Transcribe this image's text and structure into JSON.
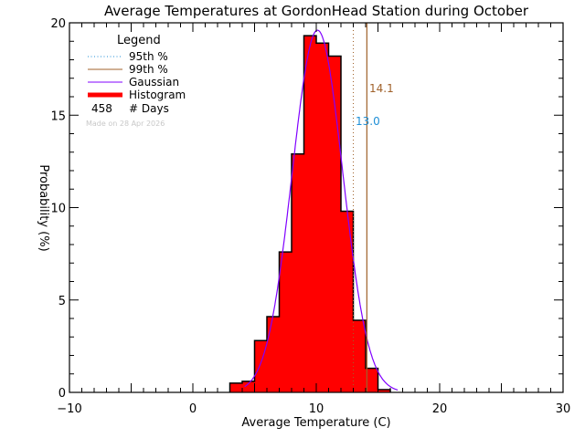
{
  "chart_data": {
    "type": "bar",
    "title": "Average Temperatures at GordonHead Station during October",
    "xlabel": "Average Temperature (C)",
    "ylabel": "Probability (%)",
    "xlim": [
      -10,
      30
    ],
    "ylim": [
      0,
      20
    ],
    "x_ticks": [
      -10,
      0,
      10,
      20,
      30
    ],
    "y_ticks": [
      0,
      5,
      10,
      15,
      20
    ],
    "grid": false,
    "legend": {
      "title": "Legend",
      "position": "upper-left",
      "entries": [
        {
          "label": "95th %",
          "style": "dotted",
          "color": "#1f8fd6"
        },
        {
          "label": "99th %",
          "style": "solid",
          "color": "#a0612a"
        },
        {
          "label": "Gaussian",
          "style": "solid",
          "color": "#8000ff"
        },
        {
          "label": "Histogram",
          "style": "thick",
          "color": "#ff0000"
        }
      ],
      "days_count": "458",
      "days_label": "# Days",
      "made_on": "Made on 28 Apr 2026"
    },
    "histogram": {
      "bin_edges": [
        3,
        4,
        5,
        6,
        7,
        8,
        9,
        10,
        11,
        12,
        13,
        14,
        15,
        16
      ],
      "values": [
        0.5,
        0.6,
        2.8,
        4.1,
        7.6,
        12.9,
        19.3,
        18.9,
        18.2,
        9.8,
        3.9,
        1.3,
        0.15
      ]
    },
    "gaussian": {
      "mean": 10.1,
      "peak": 19.6,
      "sigma": 2.05,
      "x_range": [
        4.2,
        16.6
      ]
    },
    "percentiles": {
      "p95": {
        "value": 13.0,
        "label": "13.0",
        "color": "#1f8fd6"
      },
      "p99": {
        "value": 14.1,
        "label": "14.1",
        "color": "#a0612a"
      }
    }
  }
}
